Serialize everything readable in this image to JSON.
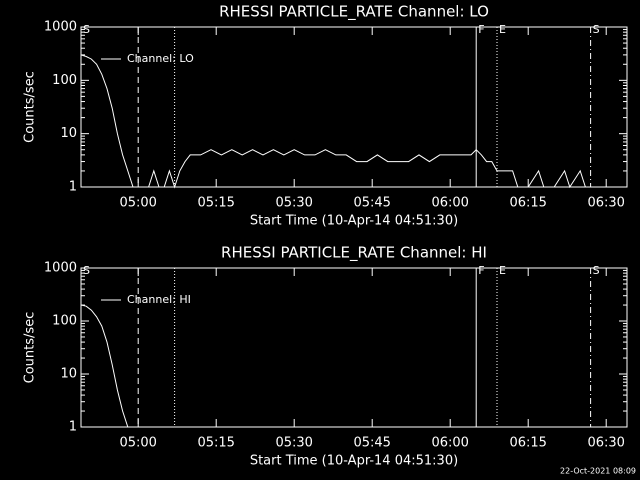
{
  "chart_data": [
    {
      "type": "line",
      "title": "RHESSI PARTICLE_RATE Channel: LO",
      "xlabel": "Start Time (10-Apr-14 04:51:30)",
      "ylabel": "Counts/sec",
      "log_y": true,
      "color": "#ffffff",
      "xlim": [
        "04:49",
        "06:34"
      ],
      "xticks": [
        "05:00",
        "05:15",
        "05:30",
        "05:45",
        "06:00",
        "06:15",
        "06:30"
      ],
      "ylim": [
        1,
        1000
      ],
      "yticks": [
        1,
        10,
        100,
        1000
      ],
      "markers": [
        {
          "x": "05:00",
          "style": "dashed"
        },
        {
          "x": "05:07",
          "style": "dotted"
        },
        {
          "x": "06:05",
          "style": "solid"
        },
        {
          "x": "06:09",
          "style": "dotted"
        },
        {
          "x": "06:27",
          "style": "dashdot"
        }
      ],
      "annotations": [
        {
          "x": "04:49",
          "text": "S"
        },
        {
          "x": "06:05",
          "text": "F"
        },
        {
          "x": "06:09",
          "text": "E"
        },
        {
          "x": "06:27",
          "text": "S"
        }
      ],
      "series": [
        {
          "name": "Channel: LO",
          "color": "#ffffff",
          "x": [
            "04:49",
            "04:50",
            "04:51",
            "04:52",
            "04:53",
            "04:54",
            "04:55",
            "04:56",
            "04:57",
            "04:58",
            "04:59",
            "05:00",
            "05:01",
            "05:02",
            "05:03",
            "05:04",
            "05:05",
            "05:06",
            "05:07",
            "05:08",
            "05:09",
            "05:10",
            "05:12",
            "05:14",
            "05:16",
            "05:18",
            "05:20",
            "05:22",
            "05:24",
            "05:26",
            "05:28",
            "05:30",
            "05:32",
            "05:34",
            "05:36",
            "05:38",
            "05:40",
            "05:42",
            "05:44",
            "05:46",
            "05:48",
            "05:50",
            "05:52",
            "05:54",
            "05:56",
            "05:58",
            "06:00",
            "06:02",
            "06:04",
            "06:05",
            "06:06",
            "06:07",
            "06:08",
            "06:09",
            "06:10",
            "06:12",
            "06:13",
            "06:15",
            "06:17",
            "06:18",
            "06:20",
            "06:22",
            "06:23",
            "06:25",
            "06:26",
            "06:28"
          ],
          "values": [
            300,
            280,
            250,
            200,
            130,
            70,
            30,
            10,
            4,
            2,
            1,
            1,
            1,
            1,
            2,
            1,
            1,
            2,
            1,
            2,
            3,
            4,
            4,
            5,
            4,
            5,
            4,
            5,
            4,
            5,
            4,
            5,
            4,
            4,
            5,
            4,
            4,
            3,
            3,
            4,
            3,
            3,
            3,
            4,
            3,
            4,
            4,
            4,
            4,
            5,
            4,
            3,
            3,
            2,
            2,
            2,
            1,
            1,
            2,
            1,
            1,
            2,
            1,
            2,
            1,
            1
          ]
        }
      ]
    },
    {
      "type": "line",
      "title": "RHESSI PARTICLE_RATE Channel: HI",
      "xlabel": "Start Time (10-Apr-14 04:51:30)",
      "ylabel": "Counts/sec",
      "log_y": true,
      "color": "#ffffff",
      "xlim": [
        "04:49",
        "06:34"
      ],
      "xticks": [
        "05:00",
        "05:15",
        "05:30",
        "05:45",
        "06:00",
        "06:15",
        "06:30"
      ],
      "ylim": [
        1,
        1000
      ],
      "yticks": [
        1,
        10,
        100,
        1000
      ],
      "markers": [
        {
          "x": "05:00",
          "style": "dashed"
        },
        {
          "x": "05:07",
          "style": "dotted"
        },
        {
          "x": "06:05",
          "style": "solid"
        },
        {
          "x": "06:09",
          "style": "dotted"
        },
        {
          "x": "06:27",
          "style": "dashdot"
        }
      ],
      "annotations": [
        {
          "x": "04:49",
          "text": "S"
        },
        {
          "x": "06:05",
          "text": "F"
        },
        {
          "x": "06:09",
          "text": "E"
        },
        {
          "x": "06:27",
          "text": "S"
        }
      ],
      "series": [
        {
          "name": "Channel: HI",
          "color": "#ffffff",
          "x": [
            "04:49",
            "04:50",
            "04:51",
            "04:52",
            "04:53",
            "04:54",
            "04:55",
            "04:56",
            "04:57",
            "04:58"
          ],
          "values": [
            200,
            190,
            160,
            120,
            80,
            40,
            15,
            5,
            2,
            1
          ]
        }
      ]
    }
  ],
  "footer": "22-Oct-2021 08:09"
}
